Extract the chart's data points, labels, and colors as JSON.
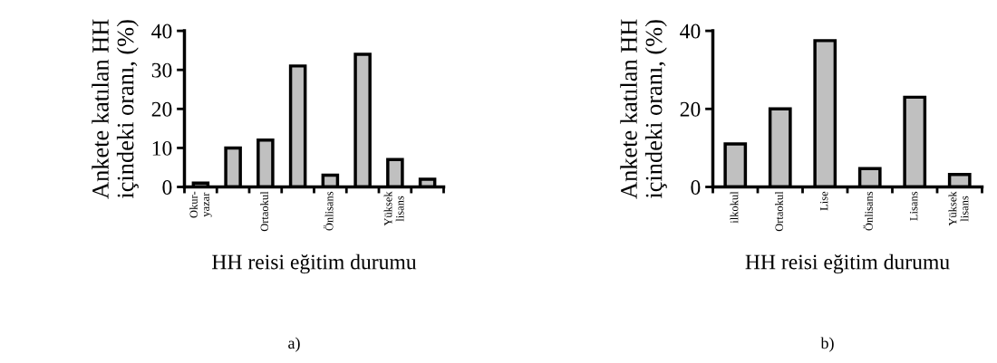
{
  "chart_data": [
    {
      "type": "bar",
      "categories": [
        "Okur-\nyazar",
        null,
        "Ortaokul",
        null,
        "Önlisans",
        null,
        "Yüksek\nlisans",
        null
      ],
      "values": [
        1,
        10,
        12,
        31,
        3,
        34,
        7,
        2
      ],
      "color": "#c0c0c0",
      "xlabel": "HH reisi eğitim durumu",
      "ylabel": "Ankete katılan HH\niçindeki oranı, (%)",
      "ylim": [
        0,
        40
      ],
      "yticks": [
        0,
        10,
        20,
        30,
        40
      ],
      "grid": false,
      "legend": false,
      "annotations": [
        "a)"
      ]
    },
    {
      "type": "bar",
      "categories": [
        "ilkokul",
        "Ortaokul",
        "Lise",
        "Önlisans",
        "Lisans",
        "Yüksek\nlisans"
      ],
      "values": [
        11,
        20,
        37.5,
        4.7,
        23,
        3.2
      ],
      "color": "#c0c0c0",
      "xlabel": "HH reisi eğitim durumu",
      "ylabel": "Ankete katılan HH\niçindeki oranı, (%)",
      "ylim": [
        0,
        40
      ],
      "yticks": [
        0,
        20,
        40
      ],
      "grid": false,
      "legend": false,
      "annotations": [
        "b)"
      ]
    }
  ]
}
